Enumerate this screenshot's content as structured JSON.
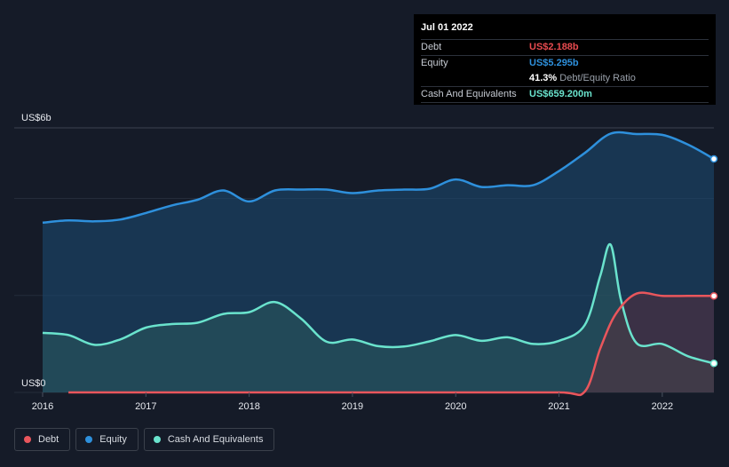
{
  "chart_data": {
    "type": "area",
    "title": "",
    "y_top_label": "US$6b",
    "y_bottom_label": "US$0",
    "ylim": [
      0,
      6
    ],
    "xlim": [
      2016,
      2022.5
    ],
    "x_ticks": [
      {
        "value": 2016,
        "label": "2016"
      },
      {
        "value": 2017,
        "label": "2017"
      },
      {
        "value": 2018,
        "label": "2018"
      },
      {
        "value": 2019,
        "label": "2019"
      },
      {
        "value": 2020,
        "label": "2020"
      },
      {
        "value": 2021,
        "label": "2021"
      },
      {
        "value": 2022,
        "label": "2022"
      }
    ],
    "gridlines": [
      6,
      4.4,
      2.2,
      0
    ],
    "series": [
      {
        "name": "Equity",
        "color": "#2e90dc",
        "fill": "#1c4d74",
        "x": [
          2016.0,
          2016.25,
          2016.5,
          2016.75,
          2017.0,
          2017.25,
          2017.5,
          2017.75,
          2018.0,
          2018.25,
          2018.5,
          2018.75,
          2019.0,
          2019.25,
          2019.5,
          2019.75,
          2020.0,
          2020.25,
          2020.5,
          2020.75,
          2021.0,
          2021.25,
          2021.5,
          2021.75,
          2022.0,
          2022.25,
          2022.5
        ],
        "values": [
          3.85,
          3.9,
          3.88,
          3.92,
          4.07,
          4.24,
          4.37,
          4.58,
          4.33,
          4.58,
          4.6,
          4.6,
          4.52,
          4.58,
          4.6,
          4.62,
          4.83,
          4.66,
          4.7,
          4.7,
          5.02,
          5.43,
          5.87,
          5.86,
          5.84,
          5.62,
          5.295
        ]
      },
      {
        "name": "Cash And Equivalents",
        "color": "#6ae3cd",
        "fill": "#2c5a5c",
        "x": [
          2016.0,
          2016.25,
          2016.5,
          2016.75,
          2017.0,
          2017.25,
          2017.5,
          2017.75,
          2018.0,
          2018.25,
          2018.5,
          2018.75,
          2019.0,
          2019.25,
          2019.5,
          2019.75,
          2020.0,
          2020.25,
          2020.5,
          2020.75,
          2021.0,
          2021.25,
          2021.4,
          2021.5,
          2021.6,
          2021.75,
          2022.0,
          2022.25,
          2022.5
        ],
        "values": [
          1.35,
          1.3,
          1.08,
          1.2,
          1.47,
          1.55,
          1.58,
          1.78,
          1.82,
          2.05,
          1.68,
          1.15,
          1.2,
          1.05,
          1.04,
          1.16,
          1.3,
          1.17,
          1.25,
          1.1,
          1.17,
          1.53,
          2.65,
          3.35,
          2.1,
          1.12,
          1.1,
          0.82,
          0.659
        ]
      },
      {
        "name": "Debt",
        "color": "#e9565c",
        "fill": "#5a2e3c",
        "x": [
          2016.25,
          2016.5,
          2017.0,
          2018.0,
          2019.0,
          2020.0,
          2021.0,
          2021.25,
          2021.4,
          2021.55,
          2021.75,
          2022.0,
          2022.25,
          2022.5
        ],
        "values": [
          0.0,
          0.0,
          0.0,
          0.0,
          0.0,
          0.0,
          0.0,
          0.02,
          1.0,
          1.78,
          2.24,
          2.19,
          2.188,
          2.188
        ]
      }
    ],
    "tooltip": {
      "date": "Jul 01 2022",
      "rows": [
        {
          "label": "Debt",
          "value": "US$2.188b",
          "color": "#e84b4f"
        },
        {
          "label": "Equity",
          "value": "US$5.295b",
          "color": "#2e90dc"
        },
        {
          "label": "",
          "value": "41.3%",
          "note": "Debt/Equity Ratio",
          "color": "#ffffff"
        },
        {
          "label": "Cash And Equivalents",
          "value": "US$659.200m",
          "color": "#6ae3cd"
        }
      ]
    },
    "legend": [
      {
        "label": "Debt",
        "color": "#e9565c"
      },
      {
        "label": "Equity",
        "color": "#2e90dc"
      },
      {
        "label": "Cash And Equivalents",
        "color": "#6ae3cd"
      }
    ]
  }
}
